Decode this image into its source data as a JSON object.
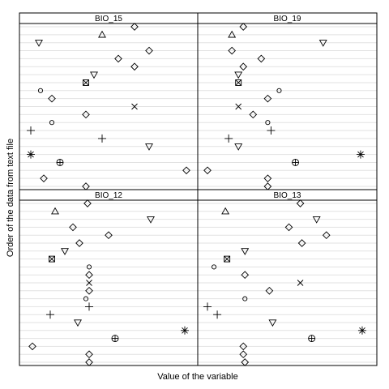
{
  "chart_data": {
    "type": "scatter",
    "subtype": "dotchart-multipanel",
    "xlabel": "Value of the variable",
    "ylabel": "Order of the data from text file",
    "grid": true,
    "n_rows": 21,
    "symbols": [
      "diamond",
      "triangle",
      "triangle-down",
      "diamond",
      "diamond",
      "diamond",
      "triangle-down",
      "boxed-x",
      "circle",
      "diamond",
      "x",
      "diamond",
      "circle",
      "plus",
      "plus",
      "triangle-down",
      "asterisk",
      "circle-plus",
      "diamond",
      "diamond",
      "diamond"
    ],
    "panels": [
      {
        "name": "BIO_15",
        "xlim": [
          0,
          100
        ],
        "x": [
          66,
          46,
          7,
          75,
          56,
          66,
          41,
          36,
          8,
          15,
          66,
          36,
          15,
          2,
          46,
          75,
          2,
          20,
          98,
          10,
          36
        ]
      },
      {
        "name": "BIO_19",
        "xlim": [
          0,
          100
        ],
        "x": [
          23,
          16,
          72,
          16,
          34,
          23,
          20,
          20,
          45,
          38,
          20,
          29,
          38,
          40,
          14,
          20,
          95,
          55,
          1,
          38,
          38
        ]
      },
      {
        "name": "BIO_12",
        "xlim": [
          0,
          100
        ],
        "x": [
          37,
          17,
          76,
          28,
          50,
          32,
          23,
          15,
          38,
          38,
          38,
          38,
          36,
          38,
          14,
          31,
          97,
          54,
          3,
          38,
          38
        ]
      },
      {
        "name": "BIO_13",
        "xlim": [
          0,
          100
        ],
        "x": [
          58,
          12,
          68,
          51,
          74,
          59,
          24,
          13,
          5,
          24,
          58,
          39,
          24,
          1,
          7,
          41,
          96,
          65,
          23,
          23,
          24
        ]
      }
    ]
  }
}
